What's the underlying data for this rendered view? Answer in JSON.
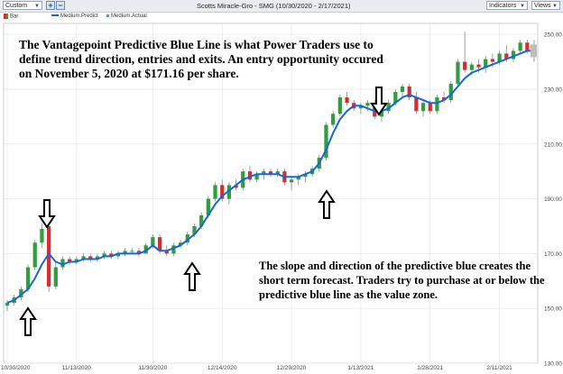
{
  "toolbar": {
    "preset": "Custom",
    "title": "Scotts Miracle-Gro - SMG (10/30/2020 - 2/17/2021)",
    "indicators_label": "Indicators",
    "views_label": "Views"
  },
  "legend": [
    {
      "label": "Bar",
      "color": "#d32f2f"
    },
    {
      "label": "Medium.Predict",
      "color": "#1565e0"
    },
    {
      "label": "Medium.Actual",
      "color": "#7a8da0"
    }
  ],
  "annotations": {
    "top": "The Vantagepoint Predictive Blue Line is what Power Traders use to define trend direction, entries and exits.  An entry opportunity occured on November 5, 2020 at $171.16 per share.",
    "bottom": "The slope and direction of the predictive blue creates the short term forecast. Traders try to purchase at or below the predictive blue line as the value zone."
  },
  "chart_data": {
    "type": "candlestick",
    "ylim": [
      130,
      254
    ],
    "yticks": [
      "130.00",
      "150.00",
      "170.00",
      "190.00",
      "210.00",
      "230.00",
      "250.00"
    ],
    "ytick_values": [
      130,
      150,
      170,
      190,
      210,
      230,
      250
    ],
    "xtick_labels": [
      "10/30/2020",
      "11/13/2020",
      "11/30/2020",
      "12/14/2020",
      "12/29/2020",
      "1/13/2021",
      "1/28/2021",
      "2/11/2021"
    ],
    "xtick_index": [
      0,
      10,
      21,
      31,
      41,
      51,
      61,
      71
    ],
    "colors": {
      "up": "#2e9e3e",
      "down": "#d32f2f",
      "predict": "#1565e0"
    },
    "candles": [
      {
        "o": 151,
        "h": 153,
        "l": 149,
        "c": 152
      },
      {
        "o": 152,
        "h": 155,
        "l": 151,
        "c": 154
      },
      {
        "o": 154,
        "h": 158,
        "l": 153,
        "c": 157
      },
      {
        "o": 157,
        "h": 166,
        "l": 156,
        "c": 165
      },
      {
        "o": 165,
        "h": 175,
        "l": 164,
        "c": 174
      },
      {
        "o": 174,
        "h": 181,
        "l": 172,
        "c": 179
      },
      {
        "o": 180,
        "h": 181,
        "l": 156,
        "c": 158
      },
      {
        "o": 158,
        "h": 167,
        "l": 157,
        "c": 165
      },
      {
        "o": 165,
        "h": 169,
        "l": 164,
        "c": 168
      },
      {
        "o": 168,
        "h": 169,
        "l": 166,
        "c": 167
      },
      {
        "o": 167,
        "h": 169,
        "l": 166,
        "c": 168
      },
      {
        "o": 168,
        "h": 170,
        "l": 167,
        "c": 169
      },
      {
        "o": 169,
        "h": 170,
        "l": 167,
        "c": 168
      },
      {
        "o": 168,
        "h": 170,
        "l": 167,
        "c": 169
      },
      {
        "o": 169,
        "h": 171,
        "l": 168,
        "c": 170
      },
      {
        "o": 170,
        "h": 171,
        "l": 168,
        "c": 169
      },
      {
        "o": 169,
        "h": 171,
        "l": 168,
        "c": 170
      },
      {
        "o": 170,
        "h": 172,
        "l": 169,
        "c": 171
      },
      {
        "o": 171,
        "h": 172,
        "l": 170,
        "c": 171
      },
      {
        "o": 171,
        "h": 172,
        "l": 169,
        "c": 170
      },
      {
        "o": 170,
        "h": 174,
        "l": 170,
        "c": 173
      },
      {
        "o": 173,
        "h": 177,
        "l": 172,
        "c": 176
      },
      {
        "o": 176,
        "h": 177,
        "l": 170,
        "c": 171
      },
      {
        "o": 171,
        "h": 173,
        "l": 169,
        "c": 170
      },
      {
        "o": 170,
        "h": 174,
        "l": 169,
        "c": 173
      },
      {
        "o": 173,
        "h": 175,
        "l": 172,
        "c": 174
      },
      {
        "o": 174,
        "h": 178,
        "l": 173,
        "c": 177
      },
      {
        "o": 177,
        "h": 181,
        "l": 176,
        "c": 180
      },
      {
        "o": 180,
        "h": 185,
        "l": 179,
        "c": 184
      },
      {
        "o": 184,
        "h": 191,
        "l": 183,
        "c": 190
      },
      {
        "o": 190,
        "h": 196,
        "l": 189,
        "c": 195
      },
      {
        "o": 195,
        "h": 197,
        "l": 189,
        "c": 190
      },
      {
        "o": 190,
        "h": 196,
        "l": 188,
        "c": 195
      },
      {
        "o": 195,
        "h": 197,
        "l": 193,
        "c": 194
      },
      {
        "o": 194,
        "h": 201,
        "l": 193,
        "c": 200
      },
      {
        "o": 200,
        "h": 202,
        "l": 196,
        "c": 197
      },
      {
        "o": 197,
        "h": 200,
        "l": 196,
        "c": 199
      },
      {
        "o": 199,
        "h": 201,
        "l": 197,
        "c": 200
      },
      {
        "o": 200,
        "h": 201,
        "l": 198,
        "c": 199
      },
      {
        "o": 199,
        "h": 201,
        "l": 198,
        "c": 200
      },
      {
        "o": 200,
        "h": 201,
        "l": 195,
        "c": 196
      },
      {
        "o": 196,
        "h": 198,
        "l": 193,
        "c": 197
      },
      {
        "o": 197,
        "h": 199,
        "l": 195,
        "c": 198
      },
      {
        "o": 198,
        "h": 200,
        "l": 196,
        "c": 199
      },
      {
        "o": 199,
        "h": 202,
        "l": 198,
        "c": 201
      },
      {
        "o": 201,
        "h": 206,
        "l": 200,
        "c": 205
      },
      {
        "o": 205,
        "h": 218,
        "l": 204,
        "c": 217
      },
      {
        "o": 217,
        "h": 222,
        "l": 216,
        "c": 221
      },
      {
        "o": 221,
        "h": 228,
        "l": 220,
        "c": 227
      },
      {
        "o": 227,
        "h": 229,
        "l": 224,
        "c": 225
      },
      {
        "o": 225,
        "h": 226,
        "l": 222,
        "c": 223
      },
      {
        "o": 223,
        "h": 225,
        "l": 221,
        "c": 224
      },
      {
        "o": 224,
        "h": 226,
        "l": 222,
        "c": 225
      },
      {
        "o": 225,
        "h": 226,
        "l": 219,
        "c": 220
      },
      {
        "o": 220,
        "h": 223,
        "l": 218,
        "c": 222
      },
      {
        "o": 222,
        "h": 226,
        "l": 221,
        "c": 225
      },
      {
        "o": 225,
        "h": 230,
        "l": 224,
        "c": 229
      },
      {
        "o": 229,
        "h": 232,
        "l": 227,
        "c": 231
      },
      {
        "o": 231,
        "h": 232,
        "l": 226,
        "c": 227
      },
      {
        "o": 227,
        "h": 229,
        "l": 221,
        "c": 222
      },
      {
        "o": 222,
        "h": 226,
        "l": 220,
        "c": 225
      },
      {
        "o": 225,
        "h": 226,
        "l": 221,
        "c": 222
      },
      {
        "o": 222,
        "h": 228,
        "l": 221,
        "c": 227
      },
      {
        "o": 227,
        "h": 229,
        "l": 225,
        "c": 226
      },
      {
        "o": 226,
        "h": 233,
        "l": 225,
        "c": 232
      },
      {
        "o": 232,
        "h": 241,
        "l": 231,
        "c": 240
      },
      {
        "o": 240,
        "h": 251,
        "l": 236,
        "c": 237
      },
      {
        "o": 237,
        "h": 240,
        "l": 235,
        "c": 239
      },
      {
        "o": 239,
        "h": 241,
        "l": 236,
        "c": 238
      },
      {
        "o": 238,
        "h": 242,
        "l": 236,
        "c": 241
      },
      {
        "o": 241,
        "h": 243,
        "l": 238,
        "c": 240
      },
      {
        "o": 240,
        "h": 244,
        "l": 239,
        "c": 243
      },
      {
        "o": 243,
        "h": 246,
        "l": 240,
        "c": 241
      },
      {
        "o": 241,
        "h": 245,
        "l": 240,
        "c": 244
      },
      {
        "o": 244,
        "h": 248,
        "l": 243,
        "c": 247
      },
      {
        "o": 247,
        "h": 248,
        "l": 243,
        "c": 244
      },
      {
        "o": 244,
        "h": 248,
        "l": 240,
        "c": 246
      }
    ],
    "predict": [
      152,
      153,
      155,
      157,
      161,
      166,
      170,
      167,
      166,
      167,
      167,
      168,
      168,
      168,
      169,
      169,
      170,
      170,
      170,
      170,
      171,
      173,
      171,
      171,
      172,
      173,
      175,
      177,
      180,
      184,
      188,
      191,
      193,
      195,
      197,
      198,
      199,
      199,
      199,
      199,
      198,
      198,
      198,
      199,
      200,
      203,
      208,
      214,
      219,
      222,
      224,
      224,
      223,
      222,
      222,
      223,
      225,
      227,
      228,
      227,
      226,
      225,
      225,
      226,
      228,
      231,
      234,
      236,
      237,
      238,
      239,
      240,
      241,
      242,
      243,
      244,
      244
    ]
  }
}
